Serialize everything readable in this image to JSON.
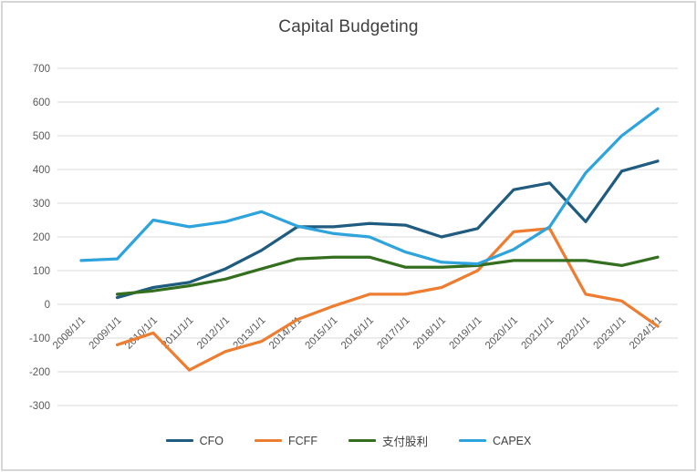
{
  "chart_data": {
    "type": "line",
    "title": "Capital Budgeting",
    "xlabel": "",
    "ylabel": "",
    "ylim": [
      -300,
      700
    ],
    "ytick_step": 100,
    "yticks": [
      700,
      600,
      500,
      400,
      300,
      200,
      100,
      0,
      -100,
      -200,
      -300
    ],
    "grid": true,
    "legend_position": "bottom",
    "categories": [
      "2008/1/1",
      "2009/1/1",
      "2010/1/1",
      "2011/1/1",
      "2012/1/1",
      "2013/1/1",
      "2014/1/1",
      "2015/1/1",
      "2016/1/1",
      "2017/1/1",
      "2018/1/1",
      "2019/1/1",
      "2020/1/1",
      "2021/1/1",
      "2022/1/1",
      "2023/1/1",
      "2024/1/1"
    ],
    "series": [
      {
        "name": "CFO",
        "color": "#1F5C7F",
        "values": [
          null,
          20,
          50,
          65,
          105,
          160,
          230,
          230,
          240,
          235,
          200,
          225,
          340,
          360,
          245,
          395,
          425
        ]
      },
      {
        "name": "FCFF",
        "color": "#ED7D31",
        "values": [
          null,
          -120,
          -85,
          -195,
          -140,
          -110,
          -45,
          -5,
          30,
          30,
          50,
          100,
          215,
          225,
          30,
          10,
          -65
        ]
      },
      {
        "name": "支付股利",
        "color": "#336F1F",
        "values": [
          null,
          30,
          40,
          55,
          75,
          105,
          135,
          140,
          140,
          110,
          110,
          115,
          130,
          130,
          130,
          115,
          140
        ]
      },
      {
        "name": "CAPEX",
        "color": "#2EA3DC",
        "values": [
          130,
          135,
          250,
          230,
          245,
          275,
          232,
          210,
          200,
          155,
          125,
          120,
          163,
          230,
          390,
          500,
          580
        ]
      }
    ]
  },
  "style": {
    "grid_color": "#D9D9D9",
    "tick_label_color": "#595959",
    "title_color": "#404040",
    "frame_border_color": "#d6d6d6"
  }
}
